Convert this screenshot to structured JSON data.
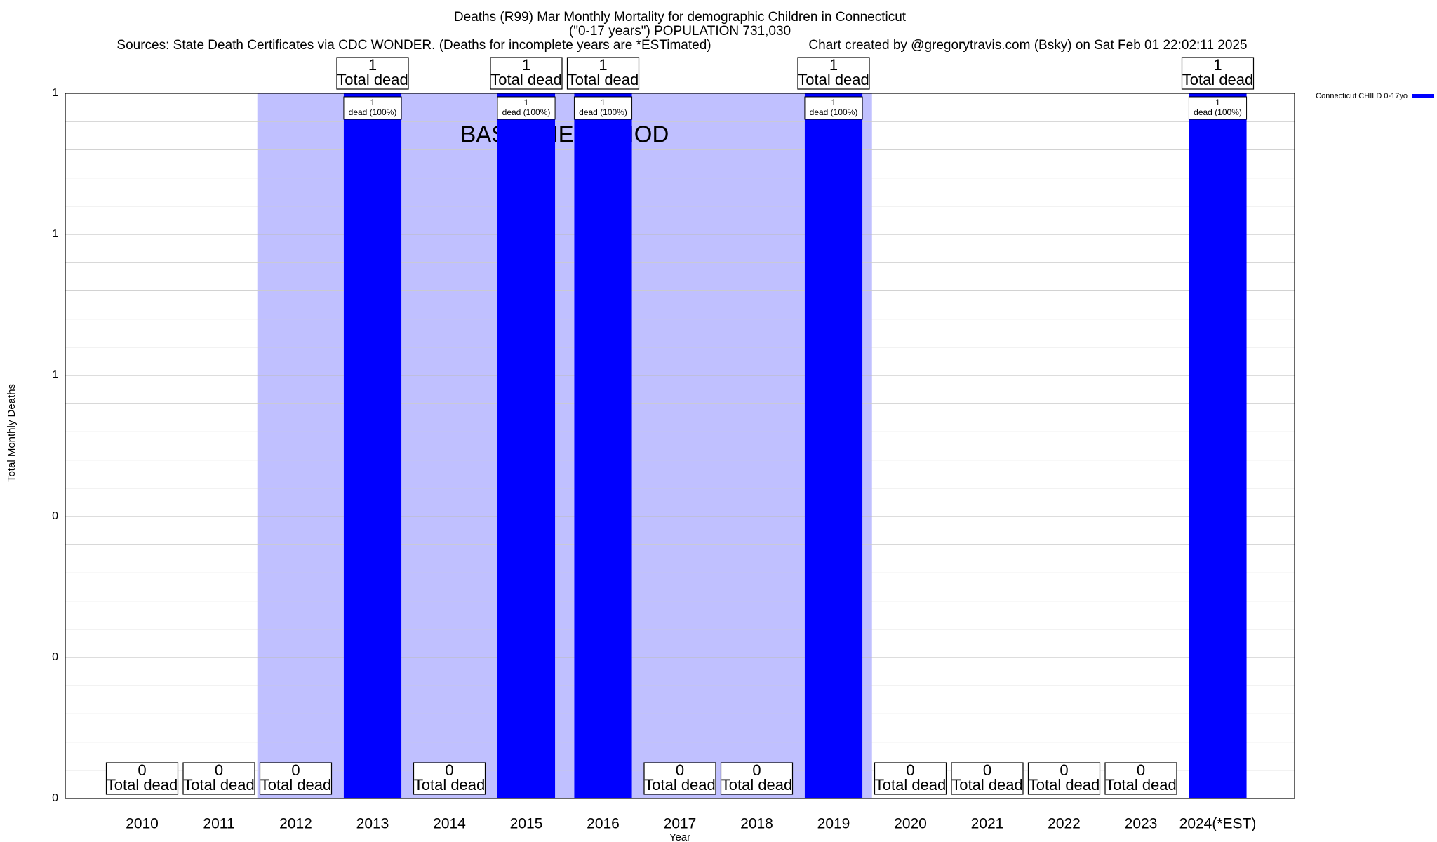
{
  "chart_data": {
    "type": "bar",
    "title": "Deaths (R99) Mar Monthly Mortality for demographic Children in Connecticut",
    "subtitle": "(\"0-17 years\") POPULATION 731,030",
    "source": "Sources: State Death Certificates via CDC WONDER. (Deaths for incomplete years are *ESTimated)",
    "credit": "Chart created by @gregorytravis.com (Bsky) on Sat Feb 01 22:02:11 2025",
    "x_label": "Year",
    "y_label": "Total Monthly Deaths",
    "categories": [
      "2010",
      "2011",
      "2012",
      "2013",
      "2014",
      "2015",
      "2016",
      "2017",
      "2018",
      "2019",
      "2020",
      "2021",
      "2022",
      "2023",
      "2024(*EST)"
    ],
    "series": [
      {
        "name": "Connecticut CHILD 0-17yo",
        "color": "#0000ff",
        "values": [
          0,
          0,
          0,
          1,
          0,
          1,
          1,
          0,
          0,
          1,
          0,
          0,
          0,
          0,
          1
        ],
        "inner_labels": [
          null,
          null,
          null,
          "dead (100%)",
          null,
          "dead (100%)",
          "dead (100%)",
          null,
          null,
          "dead (100%)",
          null,
          null,
          null,
          null,
          "dead (100%)"
        ]
      }
    ],
    "total_label": "Total dead",
    "baseline_period": {
      "label": "BASELINE PERIOD",
      "start": "2012",
      "end": "2019",
      "color": "#c0c0ff"
    },
    "ylim": [
      0,
      1
    ],
    "yticks": [
      0,
      {
        "value": 0.2,
        "label": "0"
      },
      {
        "value": 0.4,
        "label": "0"
      },
      {
        "value": 0.6,
        "label": "1"
      },
      {
        "value": 0.8,
        "label": "1"
      },
      1
    ],
    "grid": true,
    "legend": "top-right"
  }
}
